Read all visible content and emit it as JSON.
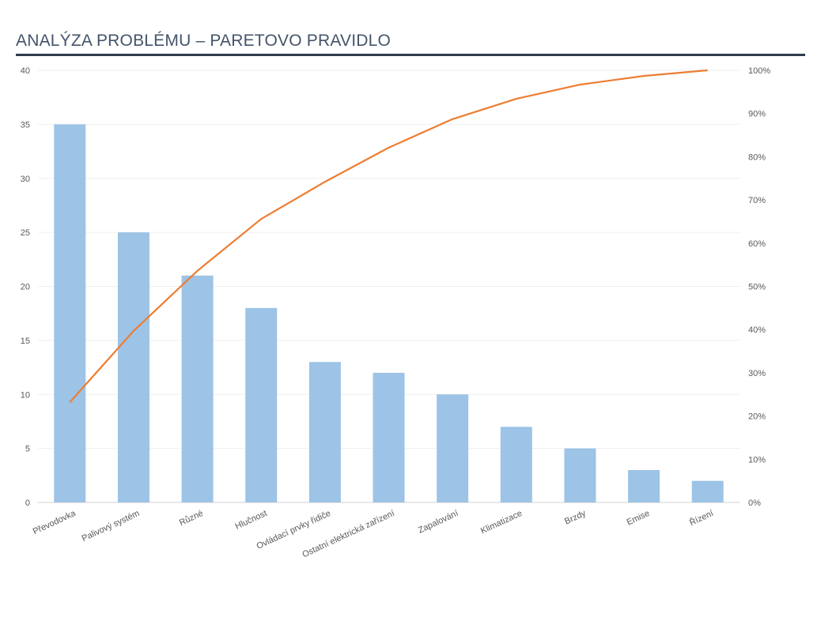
{
  "header": {
    "title": "ANALÝZA PROBLÉMU – PARETOVO PRAVIDLO"
  },
  "chart_data": {
    "type": "bar",
    "title": "",
    "xlabel": "",
    "ylabel": "",
    "categories": [
      "Převodovka",
      "Palivový systém",
      "Různé",
      "Hlučnost",
      "Ovládací prvky řidiče",
      "Ostatní elektrická zařízení",
      "Zapalování",
      "Klimatizace",
      "Brzdy",
      "Emise",
      "Řízení"
    ],
    "series": [
      {
        "type": "bar",
        "values": [
          35,
          25,
          21,
          18,
          13,
          12,
          10,
          7,
          5,
          3,
          2
        ],
        "color": "#9dc3e6",
        "axis": "left"
      },
      {
        "type": "line",
        "values": [
          23.2,
          39.7,
          53.6,
          65.6,
          74.2,
          82.1,
          88.7,
          93.4,
          96.7,
          98.7,
          100
        ],
        "color": "#ed7d31",
        "axis": "right"
      }
    ],
    "ylim": [
      0,
      40
    ],
    "yticks": [
      "0",
      "5",
      "10",
      "15",
      "20",
      "25",
      "30",
      "35",
      "40"
    ],
    "y2lim": [
      0,
      100
    ],
    "y2ticks": [
      "0%",
      "10%",
      "20%",
      "30%",
      "40%",
      "50%",
      "60%",
      "70%",
      "80%",
      "90%",
      "100%"
    ],
    "grid": true,
    "legend": "none"
  }
}
